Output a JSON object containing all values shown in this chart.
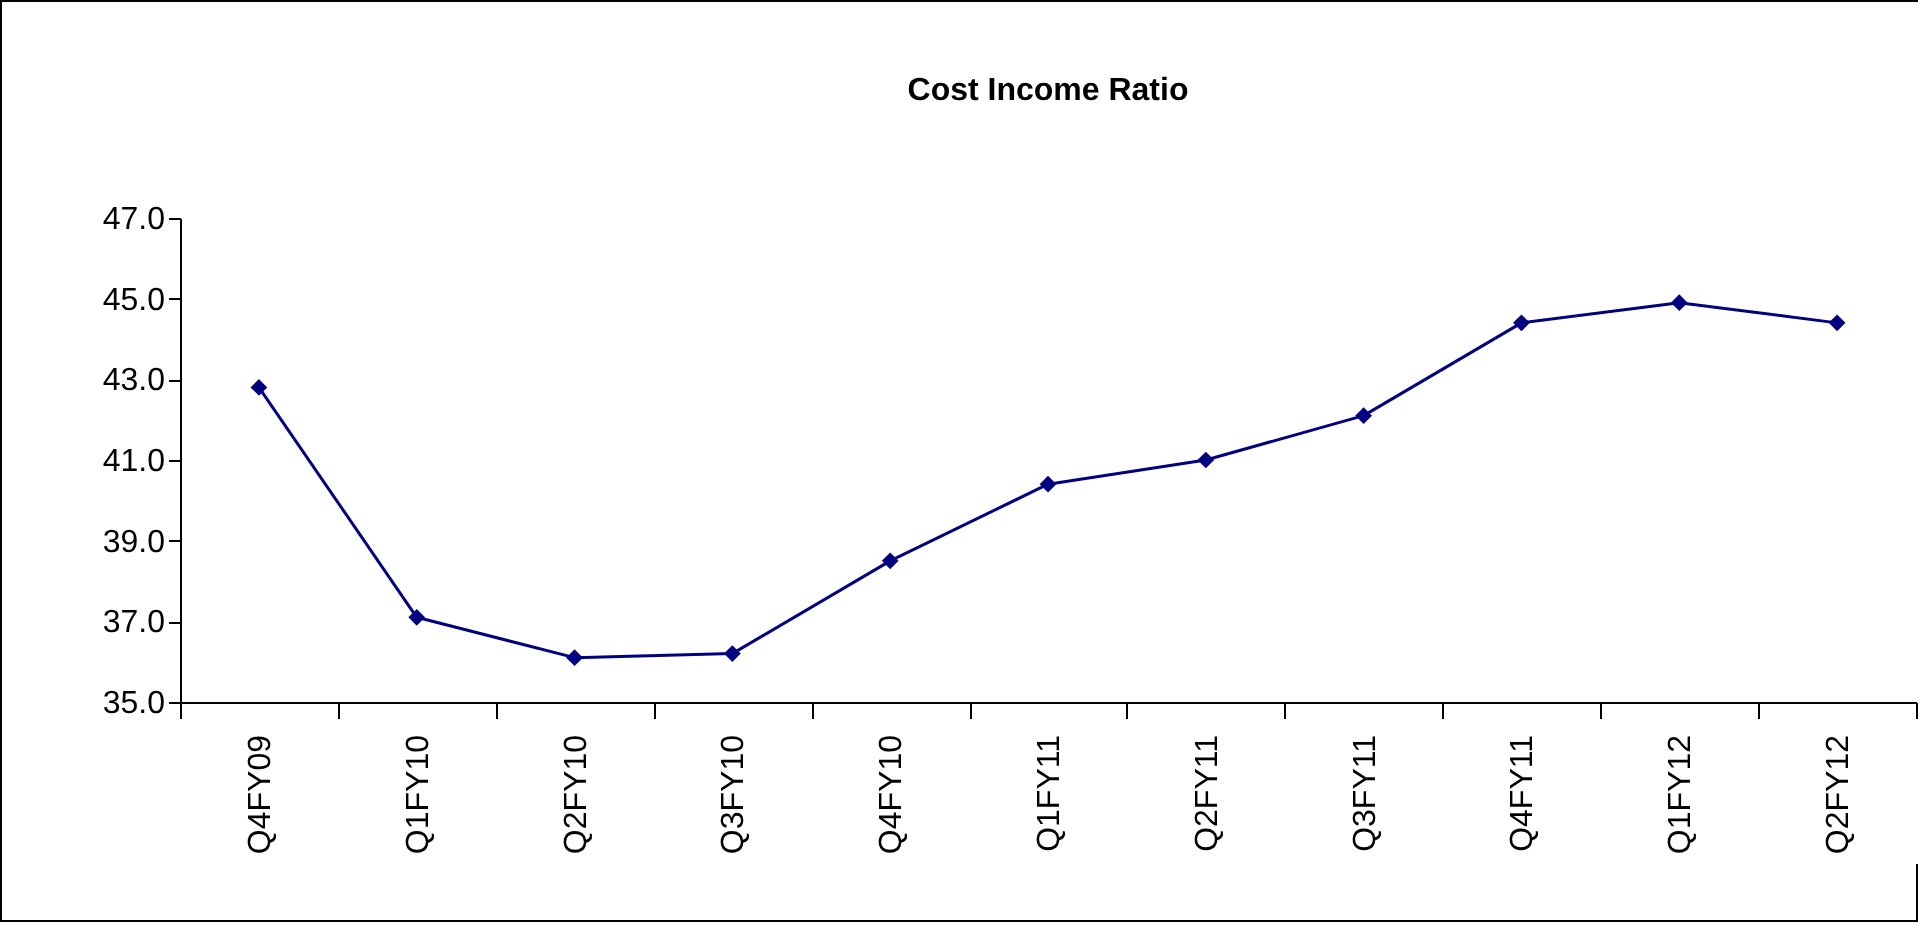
{
  "chart_data": {
    "type": "line",
    "title": "Cost Income Ratio",
    "categories": [
      "Q4FY09",
      "Q1FY10",
      "Q2FY10",
      "Q3FY10",
      "Q4FY10",
      "Q1FY11",
      "Q2FY11",
      "Q3FY11",
      "Q4FY11",
      "Q1FY12",
      "Q2FY12"
    ],
    "series": [
      {
        "color": "#000080",
        "values": [
          42.8,
          37.1,
          36.1,
          36.2,
          38.5,
          40.4,
          41.0,
          42.1,
          44.4,
          44.9,
          44.4
        ]
      }
    ],
    "ylim": [
      35,
      47
    ],
    "yticks": [
      {
        "value": 35,
        "label": "35.0"
      },
      {
        "value": 37,
        "label": "37.0"
      },
      {
        "value": 39,
        "label": "39.0"
      },
      {
        "value": 41,
        "label": "41.0"
      },
      {
        "value": 43,
        "label": "43.0"
      },
      {
        "value": 45,
        "label": "45.0"
      },
      {
        "value": 47,
        "label": "47.0"
      }
    ],
    "marker": "diamond",
    "line_style": "solid",
    "grid": false
  }
}
